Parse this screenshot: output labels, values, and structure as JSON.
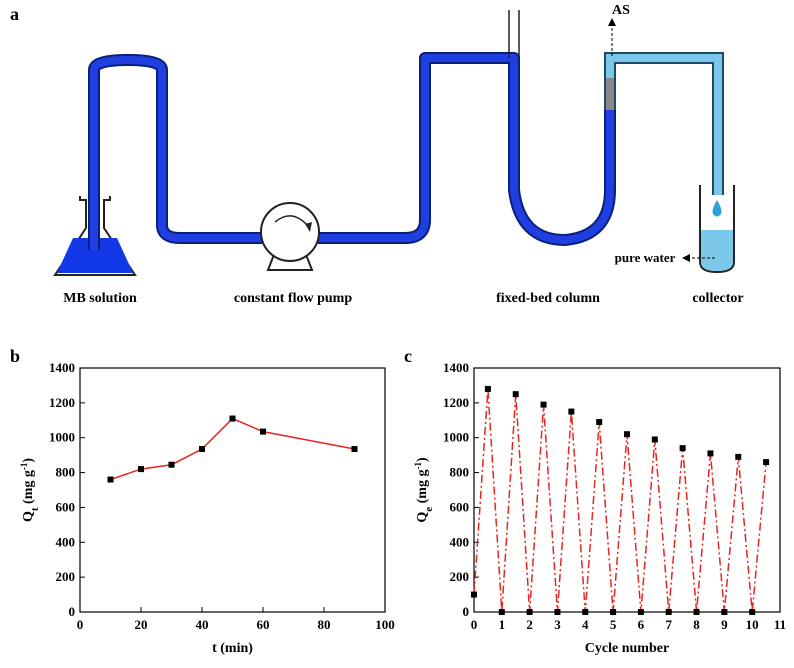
{
  "diagram": {
    "panel": "a",
    "labels": {
      "flask": "MB solution",
      "pump": "constant flow pump",
      "column": "fixed-bed column",
      "collector": "collector",
      "outlet": "AS",
      "water": "pure water"
    }
  },
  "chart_data": [
    {
      "type": "line",
      "panel": "b",
      "xlabel": "t (min)",
      "ylabel": [
        "Q",
        "t",
        " (mg g",
        "-1",
        ")"
      ],
      "x": [
        10,
        20,
        30,
        40,
        50,
        60,
        90
      ],
      "series": [
        {
          "color": "#e8251f",
          "marker_color": "#000000",
          "linestyle": "solid",
          "values": [
            760,
            820,
            845,
            935,
            1110,
            1035,
            935
          ]
        }
      ],
      "xlim": [
        0,
        100
      ],
      "xticks": [
        0,
        20,
        40,
        60,
        80,
        100
      ],
      "ylim": [
        0,
        1400
      ],
      "yticks": [
        0,
        200,
        400,
        600,
        800,
        1000,
        1200,
        1400
      ]
    },
    {
      "type": "line",
      "panel": "c",
      "xlabel": "Cycle number",
      "ylabel": [
        "Q",
        "e",
        " (mg g",
        "-1",
        ")"
      ],
      "x": [
        0,
        0.5,
        1,
        1.5,
        2,
        2.5,
        3,
        3.5,
        4,
        4.5,
        5,
        5.5,
        6,
        6.5,
        7,
        7.5,
        8,
        8.5,
        9,
        9.5,
        10,
        10.5
      ],
      "series": [
        {
          "color": "#e8251f",
          "marker_color": "#000000",
          "linestyle": "dashdot",
          "values": [
            100,
            1280,
            0,
            1250,
            0,
            1190,
            0,
            1150,
            0,
            1090,
            0,
            1020,
            0,
            990,
            0,
            940,
            0,
            910,
            0,
            890,
            0,
            860
          ]
        }
      ],
      "xlim": [
        0,
        11
      ],
      "xticks": [
        0,
        1,
        2,
        3,
        4,
        5,
        6,
        7,
        8,
        9,
        10,
        11
      ],
      "ylim": [
        0,
        1400
      ],
      "yticks": [
        0,
        200,
        400,
        600,
        800,
        1000,
        1200,
        1400
      ]
    }
  ]
}
